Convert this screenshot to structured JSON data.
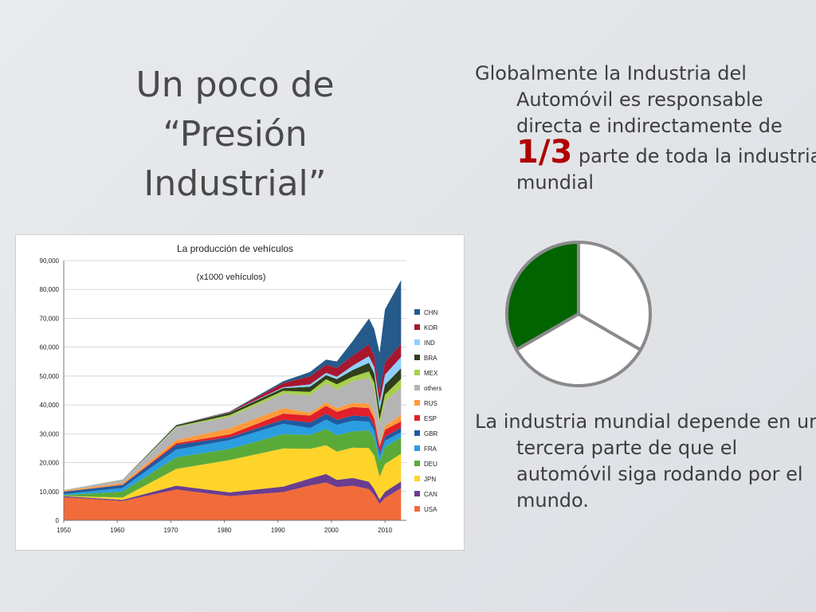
{
  "slide": {
    "title_lines": [
      "Un poco de",
      "“Presión",
      "Industrial”"
    ],
    "bullet1": {
      "before": "Globalmente la Industria del Automóvil es responsable directa e indirectamente de",
      "highlight": "1/3",
      "after": "parte de toda la industria mundial"
    },
    "bullet2": "La industria mundial depende en una tercera parte de que el automóvil siga rodando por el mundo.",
    "highlight_color": "#b00000"
  },
  "pie": {
    "type": "pie",
    "values": [
      1,
      1,
      1
    ],
    "highlighted_index": 0,
    "colors": [
      "#006400",
      "#ffffff",
      "#ffffff"
    ],
    "stroke": "#8a8a8a"
  },
  "chart_data": {
    "type": "area",
    "title": "La producción de vehículos",
    "subtitle": "(x1000 vehículos)",
    "xlim": [
      1950,
      2014
    ],
    "ylim": [
      0,
      90000
    ],
    "x_ticks": [
      "1950",
      "1960",
      "1970",
      "1980",
      "1990",
      "2000",
      "2010"
    ],
    "y_ticks": [
      "0",
      "10,000",
      "20,000",
      "30,000",
      "40,000",
      "50,000",
      "60,000",
      "70,000",
      "80,000",
      "90,000"
    ],
    "grid": true,
    "legend_position": "right",
    "legend_order": [
      "CHN",
      "KOR",
      "IND",
      "BRA",
      "MEX",
      "others",
      "RUS",
      "ESP",
      "GBR",
      "FRA",
      "DEU",
      "JPN",
      "CAN",
      "USA"
    ],
    "x": [
      1950,
      1961,
      1971,
      1981,
      1991,
      1996,
      1999,
      2001,
      2004,
      2007,
      2008,
      2009,
      2010,
      2013
    ],
    "series": [
      {
        "name": "USA",
        "color": "#f26b3a",
        "values": [
          8000,
          6700,
          10700,
          8400,
          9800,
          12100,
          13100,
          11500,
          12000,
          10800,
          8700,
          5700,
          7800,
          11100
        ]
      },
      {
        "name": "CAN",
        "color": "#6a3d8f",
        "values": [
          400,
          400,
          1300,
          1300,
          1900,
          2400,
          3000,
          2500,
          2700,
          2600,
          2100,
          1500,
          2100,
          2400
        ]
      },
      {
        "name": "JPN",
        "color": "#ffd42a",
        "values": [
          50,
          800,
          5800,
          11200,
          13200,
          10300,
          9900,
          9800,
          10500,
          11600,
          11600,
          7900,
          9600,
          9600
        ]
      },
      {
        "name": "DEU",
        "color": "#5aaa3a",
        "values": [
          300,
          2100,
          4000,
          3900,
          5000,
          4800,
          5700,
          5700,
          5600,
          6200,
          6000,
          5200,
          5900,
          5700
        ]
      },
      {
        "name": "FRA",
        "color": "#2a9ee0",
        "values": [
          360,
          1250,
          2700,
          3000,
          3600,
          2400,
          3200,
          3600,
          3700,
          3000,
          2600,
          2000,
          2200,
          1700
        ]
      },
      {
        "name": "GBR",
        "color": "#1f5aa0",
        "values": [
          800,
          1000,
          1700,
          1000,
          1400,
          1900,
          2000,
          1700,
          1800,
          1750,
          1650,
          1100,
          1400,
          1600
        ]
      },
      {
        "name": "ESP",
        "color": "#e0202a",
        "values": [
          10,
          100,
          500,
          1000,
          2100,
          2400,
          2800,
          2800,
          3000,
          2900,
          2500,
          2200,
          2400,
          2200
        ]
      },
      {
        "name": "RUS",
        "color": "#ff9a3a",
        "values": [
          360,
          550,
          1100,
          2100,
          1900,
          1000,
          1200,
          1250,
          1400,
          1650,
          1800,
          700,
          1400,
          2200
        ]
      },
      {
        "name": "others",
        "color": "#b4b4b4",
        "values": [
          200,
          1000,
          4500,
          4000,
          5000,
          6000,
          6500,
          6500,
          7500,
          9000,
          8500,
          7000,
          8500,
          9500
        ]
      },
      {
        "name": "MEX",
        "color": "#a6d04a",
        "values": [
          20,
          50,
          200,
          600,
          1000,
          1200,
          1500,
          1800,
          1600,
          2100,
          2200,
          1600,
          2300,
          3000
        ]
      },
      {
        "name": "BRA",
        "color": "#2f3f1a",
        "values": [
          0,
          100,
          500,
          800,
          900,
          1800,
          1400,
          1800,
          2300,
          3000,
          3200,
          3200,
          3400,
          3700
        ]
      },
      {
        "name": "IND",
        "color": "#8fd0ff",
        "values": [
          20,
          50,
          100,
          100,
          300,
          800,
          800,
          800,
          1500,
          2300,
          2300,
          2600,
          3500,
          3900
        ]
      },
      {
        "name": "KOR",
        "color": "#a8172e",
        "values": [
          0,
          0,
          0,
          200,
          1500,
          2800,
          2800,
          3000,
          3500,
          4100,
          3800,
          3500,
          4300,
          4500
        ]
      },
      {
        "name": "CHN",
        "color": "#255a8a",
        "values": [
          0,
          0,
          0,
          100,
          600,
          1500,
          1800,
          2300,
          5100,
          8900,
          9300,
          13800,
          18300,
          22100
        ]
      }
    ]
  }
}
